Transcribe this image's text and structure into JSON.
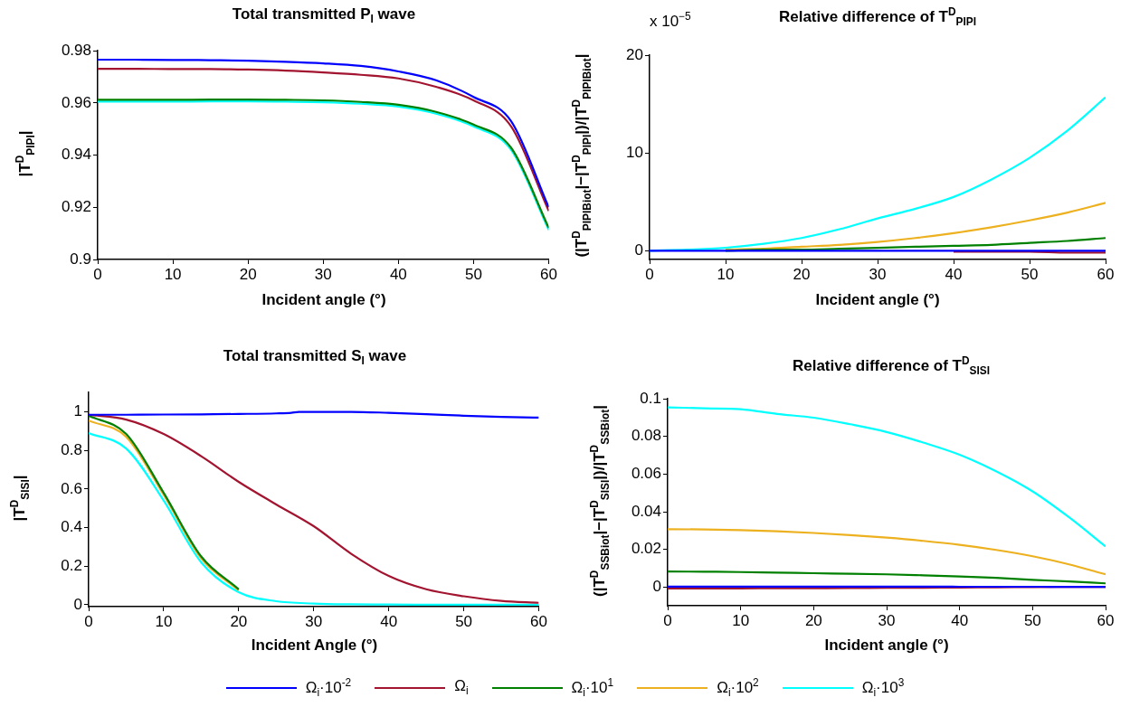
{
  "chart_data": [
    {
      "type": "line",
      "title": "Total transmitted P$_{I}$ wave",
      "xlabel": "Incident angle (°)",
      "ylabel": "|T$^{D}$$_{PIPI}$|",
      "x": [
        0,
        5,
        10,
        15,
        20,
        25,
        30,
        35,
        40,
        45,
        50,
        55,
        60
      ],
      "xlim": [
        0,
        60
      ],
      "xticks": [
        0,
        10,
        20,
        30,
        40,
        50,
        60
      ],
      "ylim": [
        0.9,
        0.98
      ],
      "yticks": [
        0.9,
        0.92,
        0.94,
        0.96,
        0.98
      ],
      "grid": false,
      "line_style": "solid",
      "marker": "none",
      "series": [
        {
          "color": "#0000ff",
          "values": [
            0.9766,
            0.9766,
            0.9765,
            0.9764,
            0.9762,
            0.9758,
            0.9752,
            0.9742,
            0.9721,
            0.9687,
            0.9623,
            0.953,
            0.92
          ]
        },
        {
          "color": "#a2142f",
          "values": [
            0.9731,
            0.9731,
            0.973,
            0.973,
            0.9728,
            0.9724,
            0.9717,
            0.9708,
            0.9694,
            0.9662,
            0.961,
            0.951,
            0.9186
          ]
        },
        {
          "color": "#008000",
          "values": [
            0.9612,
            0.9612,
            0.9612,
            0.9613,
            0.9613,
            0.9612,
            0.961,
            0.9604,
            0.9593,
            0.9566,
            0.9517,
            0.9428,
            0.9121
          ]
        },
        {
          "color": "#00ffff",
          "values": [
            0.9605,
            0.9605,
            0.9605,
            0.9606,
            0.9606,
            0.9605,
            0.9603,
            0.9597,
            0.9586,
            0.9559,
            0.951,
            0.942,
            0.9113
          ]
        }
      ]
    },
    {
      "type": "line",
      "title": "Relative difference of T$^{D}$$_{PIPI}$",
      "xlabel": "Incident angle (°)",
      "ylabel": "(|T$^{D}$$_{PIPIBiot}$|−|T$^{D}$$_{PIPI}$|)/|T$^{D}$$_{PIPIBiot}$|",
      "annotations": [
        "x 10$^{−5}$"
      ],
      "x": [
        0,
        5,
        10,
        15,
        20,
        25,
        30,
        35,
        40,
        45,
        50,
        55,
        60
      ],
      "xlim": [
        0,
        60
      ],
      "xticks": [
        0,
        10,
        20,
        30,
        40,
        50,
        60
      ],
      "ylim": [
        -0.9,
        20
      ],
      "yticks": [
        0,
        10,
        20
      ],
      "grid": false,
      "line_style": "solid",
      "marker": "none",
      "series": [
        {
          "color": "#0000ff",
          "values": [
            0,
            0,
            0,
            0,
            0,
            0,
            0,
            0,
            0,
            0,
            0,
            0,
            0
          ]
        },
        {
          "color": "#a2142f",
          "values": [
            null,
            null,
            null,
            null,
            null,
            null,
            null,
            null,
            -0.1,
            -0.1,
            -0.1,
            -0.2,
            -0.2
          ]
        },
        {
          "color": "#008000",
          "values": [
            null,
            null,
            0,
            0.1,
            0.1,
            0.2,
            0.3,
            0.4,
            0.5,
            0.6,
            0.8,
            1.0,
            1.3
          ]
        },
        {
          "color": "#edb120",
          "values": [
            null,
            null,
            0.1,
            0.2,
            0.4,
            0.6,
            0.9,
            1.3,
            1.8,
            2.4,
            3.1,
            3.9,
            4.9
          ]
        },
        {
          "color": "#00ffff",
          "values": [
            0,
            0.1,
            0.3,
            0.7,
            1.3,
            2.2,
            3.3,
            4.3,
            5.5,
            7.3,
            9.5,
            12.3,
            15.7
          ]
        }
      ]
    },
    {
      "type": "line",
      "title": "Total transmitted S$_{I}$ wave",
      "xlabel": "Incident Angle (°)",
      "ylabel": "|T$^{D}$$_{SISI}$|",
      "x": [
        0,
        5,
        10,
        15,
        20,
        25,
        30,
        35,
        40,
        45,
        50,
        55,
        60
      ],
      "xlim": [
        0,
        60
      ],
      "xticks": [
        0,
        10,
        20,
        30,
        40,
        50,
        60
      ],
      "ylim": [
        -0.01,
        1.1
      ],
      "yticks": [
        0,
        0.2,
        0.4,
        0.6,
        0.8,
        1
      ],
      "grid": false,
      "legend": "bottom",
      "line_style": "solid",
      "marker": "none",
      "series": [
        {
          "name": "Ω$_{i}$·10$^{-2}$",
          "color": "#0000ff",
          "x": [
            0,
            5,
            10,
            15,
            20,
            25,
            27,
            28,
            30,
            35,
            40,
            45,
            50,
            55,
            60
          ],
          "values": [
            0.985,
            0.985,
            0.986,
            0.987,
            0.989,
            0.992,
            0.995,
            1.0,
            1.0,
            1.0,
            0.995,
            0.988,
            0.98,
            0.974,
            0.97
          ]
        },
        {
          "name": "Ω$_{i}$",
          "color": "#a2142f",
          "values": [
            0.985,
            0.96,
            0.885,
            0.77,
            0.637,
            0.52,
            0.407,
            0.264,
            0.149,
            0.08,
            0.044,
            0.02,
            0.01
          ]
        },
        {
          "name": "Ω$_{i}$·10$^{1}$",
          "color": "#008000",
          "values": [
            0.98,
            0.885,
            0.58,
            0.25,
            0.08,
            null,
            null,
            null,
            null,
            null,
            null,
            null,
            null
          ]
        },
        {
          "name": "Ω$_{i}$·10$^{2}$",
          "color": "#edb120",
          "values": [
            0.955,
            0.87,
            0.57,
            0.24,
            0.075,
            null,
            null,
            null,
            null,
            null,
            null,
            null,
            null
          ]
        },
        {
          "name": "Ω$_{i}$·10$^{3}$",
          "color": "#00ffff",
          "values": [
            0.89,
            0.81,
            0.54,
            0.22,
            0.065,
            0.018,
            0.006,
            0.002,
            0.001,
            0,
            0,
            0,
            0
          ]
        }
      ]
    },
    {
      "type": "line",
      "title": "Relative difference of T$^{D}$$_{SISI}$",
      "xlabel": "Incident angle (°)",
      "ylabel": "(|T$^{D}$$_{SSBiot}$|−|T$^{D}$$_{SISI}$|)/|T$^{D}$$_{SSBiot}$|",
      "x": [
        0,
        5,
        10,
        15,
        20,
        25,
        30,
        35,
        40,
        45,
        50,
        55,
        60
      ],
      "xlim": [
        0,
        60
      ],
      "xticks": [
        0,
        10,
        20,
        30,
        40,
        50,
        60
      ],
      "ylim": [
        -0.01,
        0.1
      ],
      "yticks": [
        0,
        0.02,
        0.04,
        0.06,
        0.08,
        0.1
      ],
      "grid": false,
      "line_style": "solid",
      "marker": "none",
      "series": [
        {
          "color": "#0000ff",
          "values": [
            0.0002,
            0.0002,
            0.0002,
            0.0002,
            0.0002,
            0.0002,
            0.0002,
            0.0002,
            0.0001,
            0.0001,
            0.0001,
            0,
            0
          ]
        },
        {
          "color": "#a2142f",
          "values": [
            -0.0008,
            -0.0008,
            -0.0008,
            -0.0007,
            -0.0007,
            -0.0006,
            -0.0005,
            -0.0004,
            -0.0003,
            -0.0002,
            -0.0001,
            0,
            0
          ]
        },
        {
          "color": "#008000",
          "values": [
            0.0082,
            0.0081,
            0.0079,
            0.0076,
            0.0073,
            0.007,
            0.0067,
            0.0062,
            0.0056,
            0.0048,
            0.0038,
            0.0029,
            0.0019
          ]
        },
        {
          "color": "#edb120",
          "values": [
            0.0307,
            0.0306,
            0.0302,
            0.0296,
            0.0287,
            0.0276,
            0.0262,
            0.0245,
            0.0224,
            0.0197,
            0.0163,
            0.012,
            0.0067
          ]
        },
        {
          "color": "#00ffff",
          "values": [
            0.0955,
            0.095,
            0.0945,
            0.092,
            0.09,
            0.0865,
            0.0824,
            0.0768,
            0.0703,
            0.0615,
            0.0508,
            0.037,
            0.0215
          ]
        }
      ]
    }
  ]
}
